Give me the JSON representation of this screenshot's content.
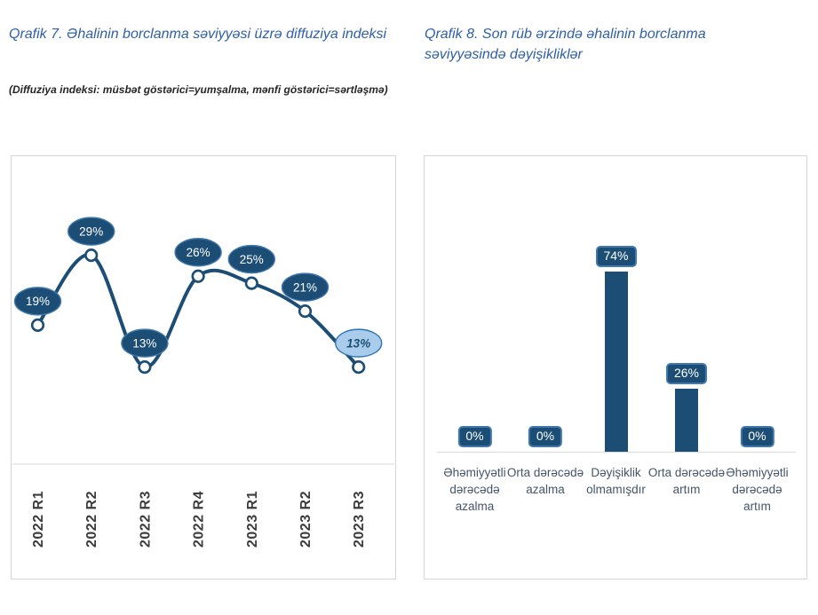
{
  "accent_colors": {
    "title_blue": "#2E5FA6",
    "dark_blue": "#1C4E75",
    "label_border_blue": "#4178AE",
    "highlight_fill": "#A9CCEA",
    "highlight_border": "#2E75B6",
    "axis_gray": "#D9D9D9",
    "x_label_gray": "#3C3C3C",
    "category_label_color": "#44546A"
  },
  "panels": {
    "left": {
      "title": "Qrafik 7. Əhalinin borclanma səviyyəsi üzrə diffuziya indeksi",
      "subtitle": "(Diffuziya indeksi: müsbət göstərici=yumşalma, mənfi göstərici=sərtləşmə)"
    },
    "right": {
      "title": "Qrafik 8. Son rüb ərzində əhalinin borclanma səviyyəsində dəyişikliklər"
    }
  },
  "chart_data": [
    {
      "type": "line",
      "title": "Qrafik 7. Əhalinin borclanma səviyyəsi üzrə diffuziya indeksi",
      "subtitle": "(Diffuziya indeksi: müsbət göstərici=yumşalma, mənfi göstərici=sərtləşmə)",
      "categories": [
        "2022 R1",
        "2022 R2",
        "2022 R3",
        "2022 R4",
        "2023 R1",
        "2023 R2",
        "2023 R3"
      ],
      "values": [
        19,
        29,
        13,
        26,
        25,
        21,
        13
      ],
      "point_labels": [
        "19%",
        "29%",
        "13%",
        "26%",
        "25%",
        "21%",
        "13%"
      ],
      "highlight_last_point": true,
      "marker": "open-circle",
      "smooth": true,
      "grid": false,
      "legend": "none",
      "ylim": [
        -1,
        42
      ]
    },
    {
      "type": "bar",
      "title": "Qrafik 8. Son rüb ərzində əhalinin borclanma səviyyəsində dəyişikliklər",
      "categories": [
        "Əhəmiyyətli dərəcədə azalma",
        "Orta dərəcədə azalma",
        "Dəyişiklik olmamışdır",
        "Orta dərəcədə artım",
        "Əhəmiyyətli dərəcədə artım"
      ],
      "values": [
        0,
        0,
        74,
        26,
        0
      ],
      "bar_labels": [
        "0%",
        "0%",
        "74%",
        "26%",
        "0%"
      ],
      "grid": false,
      "legend": "none",
      "ylim": [
        0,
        120
      ]
    }
  ]
}
